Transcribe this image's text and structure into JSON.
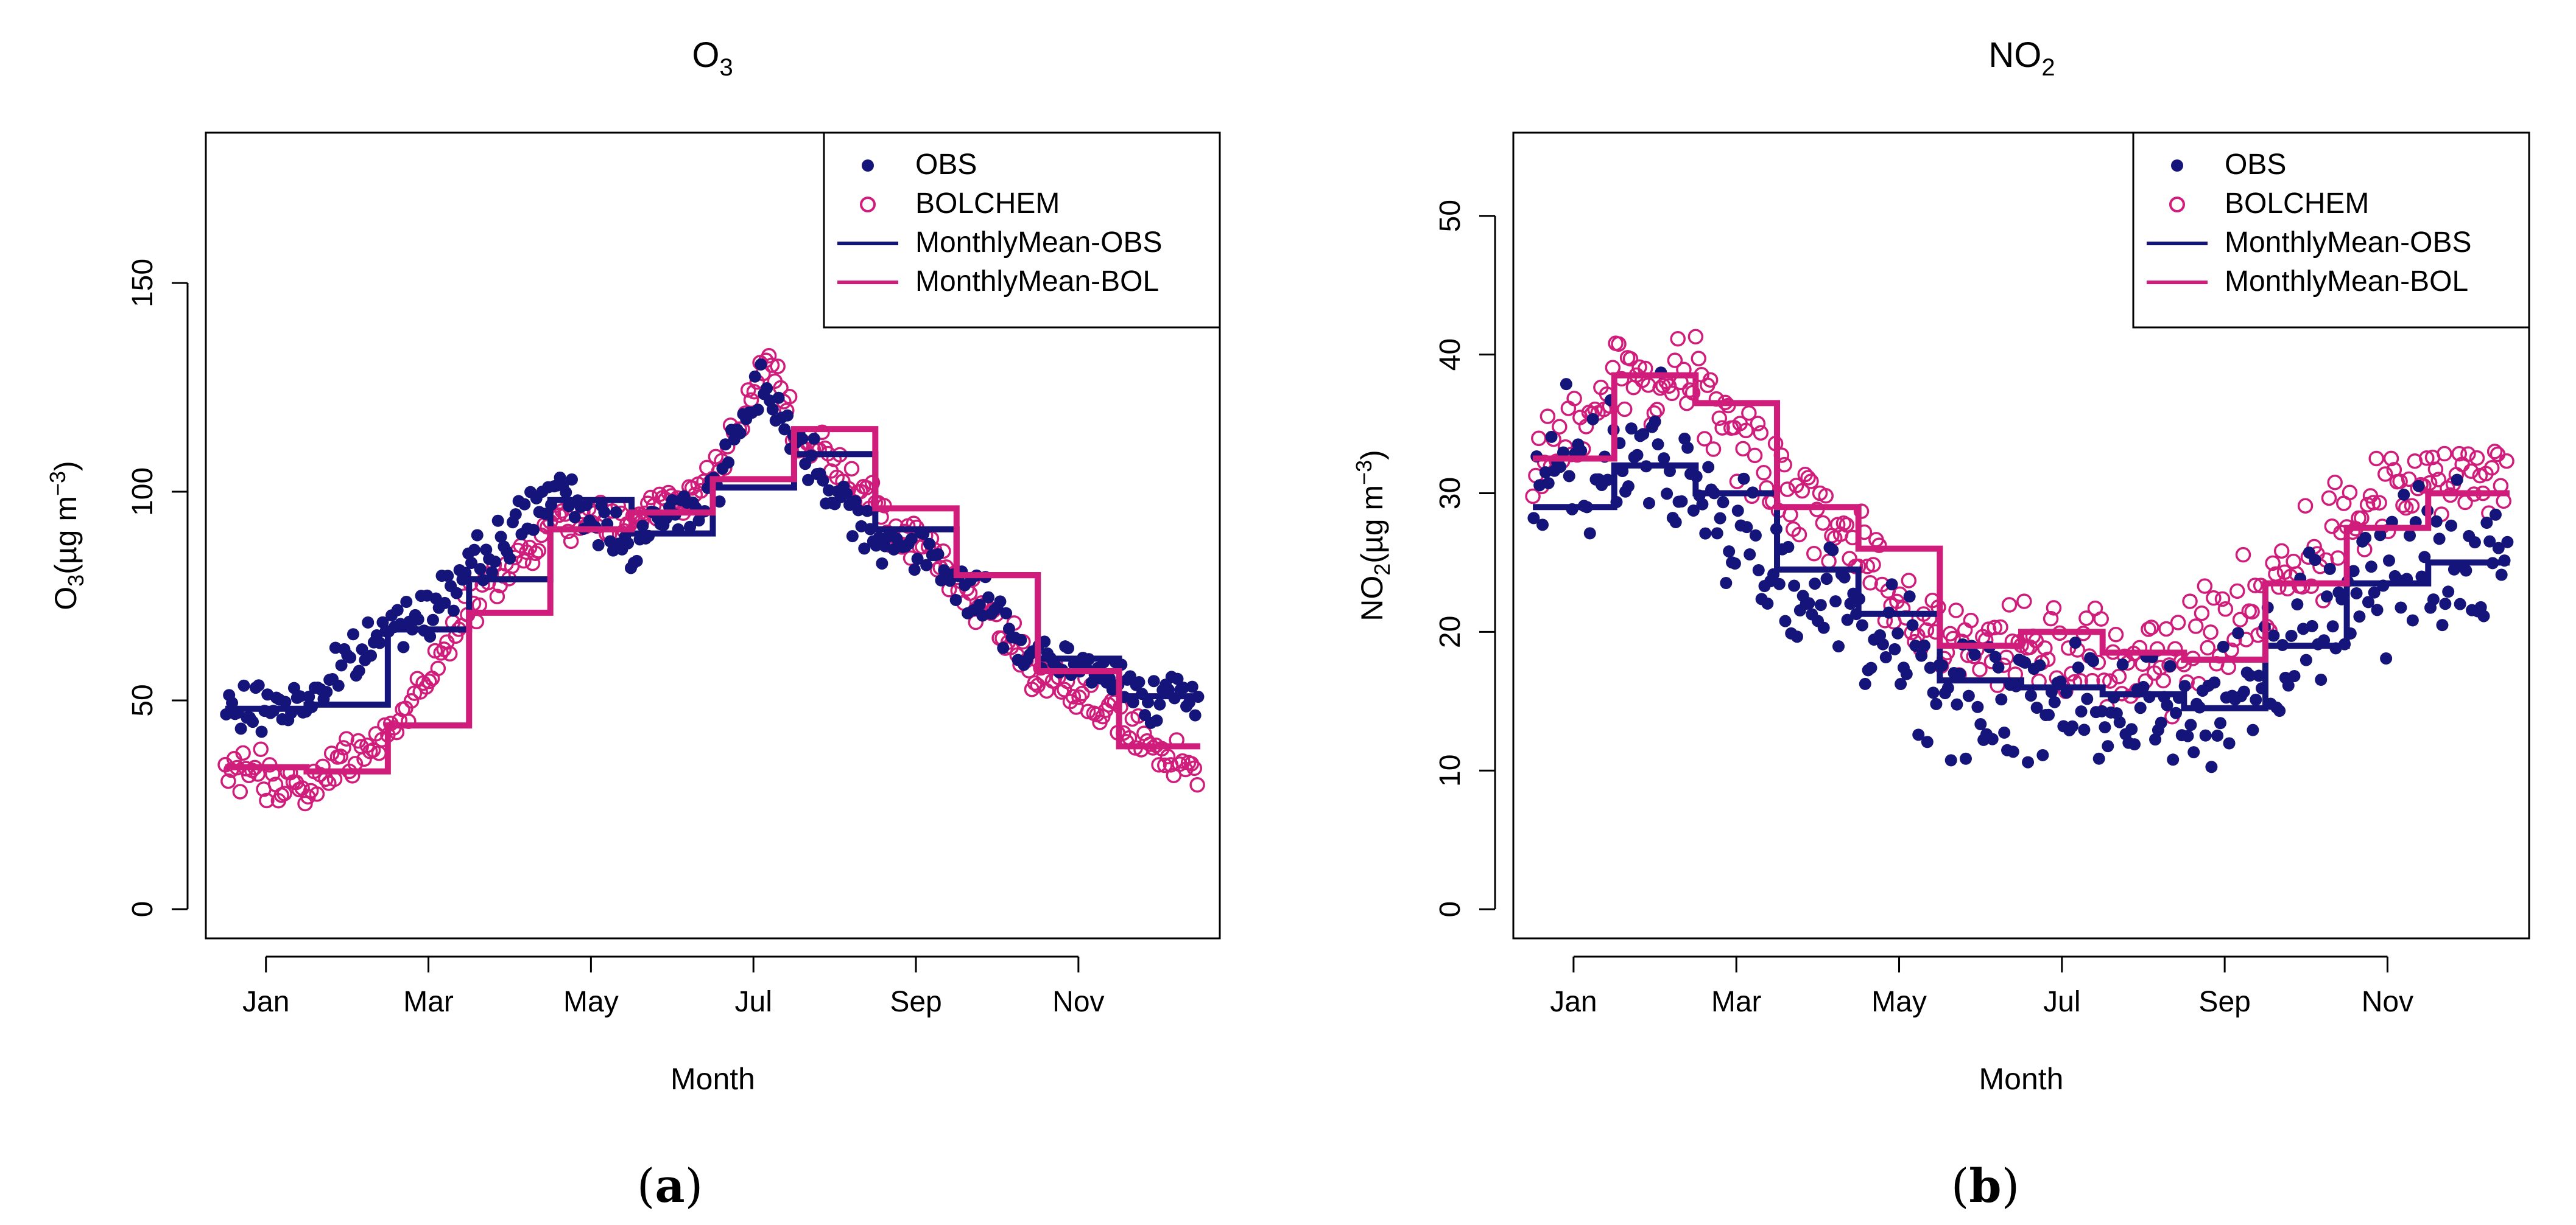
{
  "colors": {
    "obs": "#14147a",
    "bol": "#d01c7a",
    "axis": "#000000"
  },
  "legend_labels": {
    "obs": "OBS",
    "bol": "BOLCHEM",
    "mean_obs": "MonthlyMean-OBS",
    "mean_bol": "MonthlyMean-BOL"
  },
  "chart_data": [
    {
      "type": "scatter",
      "title": "O3",
      "panel_label": "a",
      "xlabel": "Month",
      "ylabel_prefix": "O",
      "ylabel_sub": "3",
      "ylabel_unit": "(µg m",
      "ylabel_exp": "−3",
      "ylim": [
        -7,
        186
      ],
      "xlim": [
        -0.74,
        11.74
      ],
      "yticks": [
        0,
        50,
        100,
        150
      ],
      "xtick_labels": [
        "Jan",
        "Mar",
        "May",
        "Jul",
        "Sep",
        "Nov"
      ],
      "xtick_positions": [
        0,
        2,
        4,
        6,
        8,
        10
      ],
      "grid": false,
      "legend_position": "top-right",
      "series": [
        {
          "name": "MonthlyMean-OBS",
          "kind": "monthly_step",
          "values": [
            48,
            49,
            67,
            79,
            98,
            90,
            101,
            109,
            91,
            80,
            60,
            51
          ]
        },
        {
          "name": "MonthlyMean-BOL",
          "kind": "monthly_step",
          "values": [
            34,
            33,
            44,
            71,
            91,
            95,
            103,
            115,
            96,
            80,
            57,
            39
          ]
        }
      ],
      "obs_daily_anchors": [
        [
          -0.5,
          47
        ],
        [
          0.5,
          50
        ],
        [
          1.5,
          67
        ],
        [
          2.5,
          80
        ],
        [
          3.5,
          100
        ],
        [
          4.5,
          88
        ],
        [
          5.5,
          100
        ],
        [
          6.1,
          128
        ],
        [
          6.5,
          112
        ],
        [
          7.5,
          90
        ],
        [
          8.5,
          80
        ],
        [
          9.5,
          60
        ],
        [
          10.5,
          55
        ],
        [
          11.5,
          48
        ]
      ],
      "bol_daily_anchors": [
        [
          -0.5,
          34
        ],
        [
          0.5,
          30
        ],
        [
          1.5,
          42
        ],
        [
          2.5,
          72
        ],
        [
          3.5,
          92
        ],
        [
          4.5,
          94
        ],
        [
          5.5,
          103
        ],
        [
          6.2,
          132
        ],
        [
          6.5,
          115
        ],
        [
          7.5,
          97
        ],
        [
          8.5,
          80
        ],
        [
          9.5,
          57
        ],
        [
          10.5,
          45
        ],
        [
          11.5,
          32
        ]
      ],
      "obs_noise": 6,
      "bol_noise": 5
    },
    {
      "type": "scatter",
      "title": "NO2",
      "panel_label": "b",
      "xlabel": "Month",
      "ylabel_prefix": "NO",
      "ylabel_sub": "2",
      "ylabel_unit": "(µg m",
      "ylabel_exp": "−3",
      "ylim": [
        -2.1,
        56
      ],
      "xlim": [
        -0.74,
        11.74
      ],
      "yticks": [
        0,
        10,
        20,
        30,
        40,
        50
      ],
      "xtick_labels": [
        "Jan",
        "Mar",
        "May",
        "Jul",
        "Sep",
        "Nov"
      ],
      "xtick_positions": [
        0,
        2,
        4,
        6,
        8,
        10
      ],
      "grid": false,
      "legend_position": "top-right",
      "series": [
        {
          "name": "MonthlyMean-OBS",
          "kind": "monthly_step",
          "values": [
            29,
            32,
            30,
            24.5,
            21.3,
            16.5,
            16,
            15.5,
            14.5,
            19,
            23.5,
            25
          ]
        },
        {
          "name": "MonthlyMean-BOL",
          "kind": "monthly_step",
          "values": [
            32.5,
            38.5,
            36.5,
            29,
            26,
            19,
            20,
            18.5,
            18,
            23.5,
            27.5,
            30
          ]
        }
      ],
      "obs_daily_anchors": [
        [
          -0.5,
          30
        ],
        [
          0.5,
          32
        ],
        [
          1.5,
          31
        ],
        [
          2.5,
          24
        ],
        [
          3.5,
          21
        ],
        [
          4.5,
          16
        ],
        [
          5.5,
          15
        ],
        [
          6.5,
          15
        ],
        [
          7.5,
          14
        ],
        [
          8.5,
          18
        ],
        [
          9.5,
          23
        ],
        [
          10.5,
          25
        ],
        [
          11.5,
          26
        ]
      ],
      "bol_daily_anchors": [
        [
          -0.5,
          32
        ],
        [
          0.5,
          38
        ],
        [
          1.5,
          38
        ],
        [
          2.5,
          31
        ],
        [
          3.5,
          26
        ],
        [
          4.5,
          19
        ],
        [
          5.5,
          20
        ],
        [
          6.5,
          18
        ],
        [
          7.5,
          18
        ],
        [
          8.5,
          23
        ],
        [
          9.5,
          28
        ],
        [
          10.5,
          31
        ],
        [
          11.5,
          31
        ]
      ],
      "obs_noise": 5,
      "bol_noise": 3.5
    }
  ]
}
